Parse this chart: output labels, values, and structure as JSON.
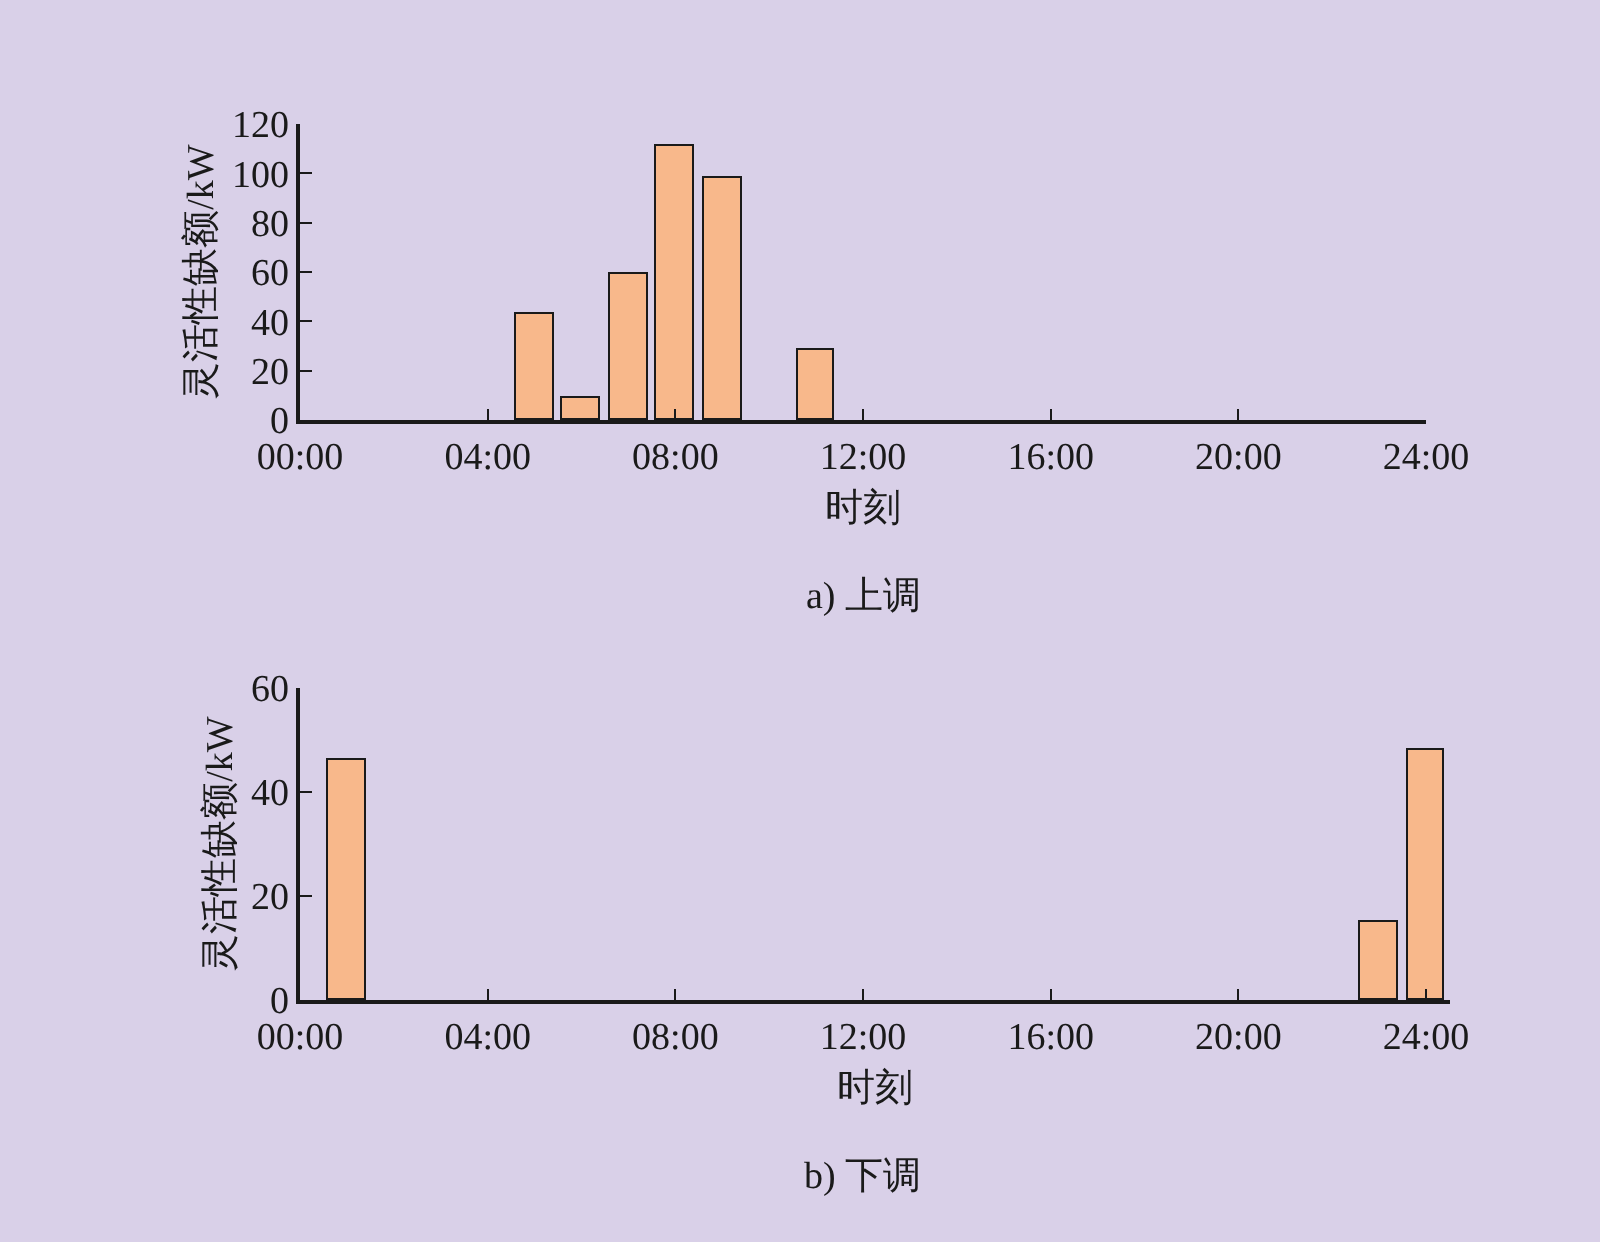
{
  "chart_data": [
    {
      "type": "bar",
      "title": "a) 上调",
      "xlabel": "时刻",
      "ylabel": "灵活性缺额/kW",
      "x": [
        5,
        6,
        7,
        8,
        9,
        11
      ],
      "values": [
        43,
        9,
        59,
        111,
        98,
        28
      ],
      "color": "#f8b88b",
      "xlim": [
        0,
        24
      ],
      "xticks": [
        {
          "value": 0,
          "label": "00:00"
        },
        {
          "value": 4,
          "label": "04:00"
        },
        {
          "value": 8,
          "label": "08:00"
        },
        {
          "value": 12,
          "label": "12:00"
        },
        {
          "value": 16,
          "label": "16:00"
        },
        {
          "value": 20,
          "label": "20:00"
        },
        {
          "value": 24,
          "label": "24:00"
        }
      ],
      "ylim": [
        0,
        120
      ],
      "yticks": [
        0,
        20,
        40,
        60,
        80,
        100,
        120
      ]
    },
    {
      "type": "bar",
      "title": "b) 下调",
      "xlabel": "时刻",
      "ylabel": "灵活性缺额/kW",
      "x": [
        1,
        23,
        24
      ],
      "values": [
        46,
        15,
        48
      ],
      "color": "#f8b88b",
      "xlim": [
        0,
        24.5
      ],
      "xticks": [
        {
          "value": 0,
          "label": "00:00"
        },
        {
          "value": 4,
          "label": "04:00"
        },
        {
          "value": 8,
          "label": "08:00"
        },
        {
          "value": 12,
          "label": "12:00"
        },
        {
          "value": 16,
          "label": "16:00"
        },
        {
          "value": 20,
          "label": "20:00"
        },
        {
          "value": 24,
          "label": "24:00"
        }
      ],
      "ylim": [
        0,
        60
      ],
      "yticks": [
        0,
        20,
        40,
        60
      ]
    }
  ]
}
